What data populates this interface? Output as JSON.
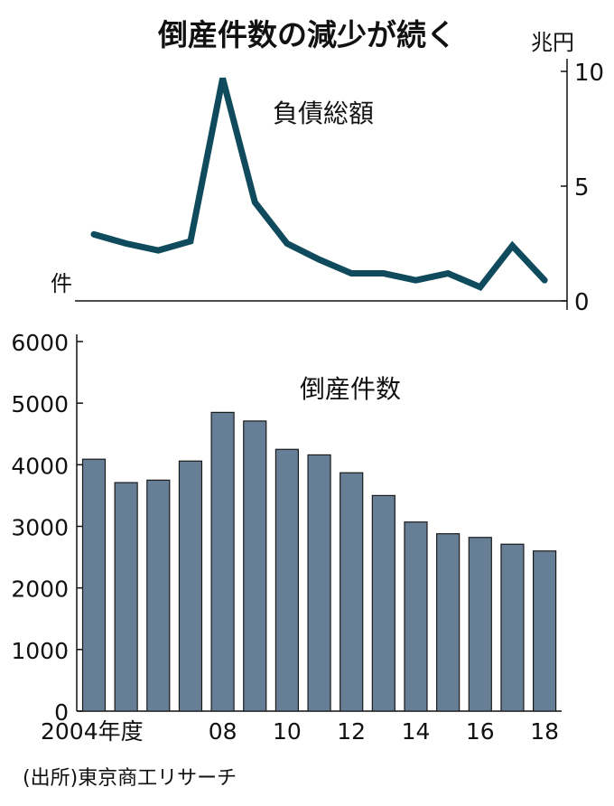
{
  "title": "倒産件数の減少が続く",
  "source": "(出所)東京商工リサーチ",
  "colors": {
    "line": "#0f4a5d",
    "bar": "#667f97",
    "bar_border": "#1a1a1a"
  },
  "chart_data": [
    {
      "type": "line",
      "title": "負債総額",
      "ylabel": "兆円",
      "ylim": [
        0,
        10
      ],
      "yticks": [
        "0",
        "5",
        "10"
      ],
      "x": [
        2004,
        2005,
        2006,
        2007,
        2008,
        2009,
        2010,
        2011,
        2012,
        2013,
        2014,
        2015,
        2016,
        2017,
        2018
      ],
      "values": [
        2.9,
        2.5,
        2.2,
        2.6,
        9.7,
        4.3,
        2.5,
        1.8,
        1.2,
        1.2,
        0.9,
        1.2,
        0.6,
        2.4,
        0.9
      ]
    },
    {
      "type": "bar",
      "title": "倒産件数",
      "ylabel": "件",
      "ylim": [
        0,
        6000
      ],
      "yticks": [
        "0",
        "1000",
        "2000",
        "3000",
        "4000",
        "5000",
        "6000"
      ],
      "categories": [
        2004,
        2005,
        2006,
        2007,
        2008,
        2009,
        2010,
        2011,
        2012,
        2013,
        2014,
        2015,
        2016,
        2017,
        2018
      ],
      "xtick_labels": [
        {
          "i": 0,
          "label": "2004年度"
        },
        {
          "i": 4,
          "label": "08"
        },
        {
          "i": 6,
          "label": "10"
        },
        {
          "i": 8,
          "label": "12"
        },
        {
          "i": 10,
          "label": "14"
        },
        {
          "i": 12,
          "label": "16"
        },
        {
          "i": 14,
          "label": "18"
        }
      ],
      "values": [
        4090,
        3710,
        3750,
        4060,
        4850,
        4710,
        4250,
        4160,
        3870,
        3500,
        3070,
        2880,
        2820,
        2710,
        2600
      ]
    }
  ]
}
